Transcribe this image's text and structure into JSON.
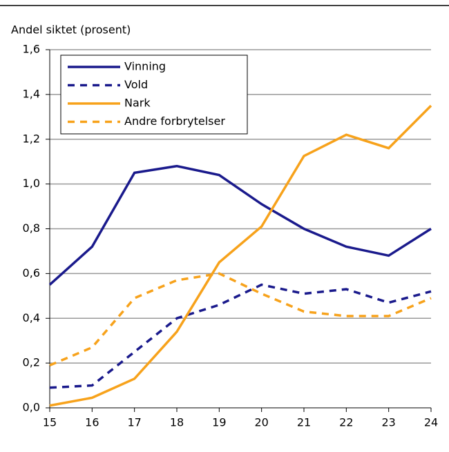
{
  "chart_data": {
    "type": "line",
    "y_label": "Andel siktet (prosent)",
    "x": [
      15,
      16,
      17,
      18,
      19,
      20,
      21,
      22,
      23,
      24
    ],
    "xlim": [
      15,
      24
    ],
    "xticks": [
      15,
      16,
      17,
      18,
      19,
      20,
      21,
      22,
      23,
      24
    ],
    "ylim": [
      0,
      1.6
    ],
    "yticks": [
      {
        "value": 0,
        "label": "0,0"
      },
      {
        "value": 0.2,
        "label": "0,2"
      },
      {
        "value": 0.4,
        "label": "0,4"
      },
      {
        "value": 0.6,
        "label": "0,6"
      },
      {
        "value": 0.8,
        "label": "0,8"
      },
      {
        "value": 1.0,
        "label": "1,0"
      },
      {
        "value": 1.2,
        "label": "1,2"
      },
      {
        "value": 1.4,
        "label": "1,4"
      },
      {
        "value": 1.6,
        "label": "1,6"
      }
    ],
    "grid": true,
    "legend": "upper left",
    "series": [
      {
        "name": "Vinning",
        "color": "#1a1a8c",
        "style": "solid",
        "values": [
          0.55,
          0.72,
          1.05,
          1.08,
          1.04,
          0.91,
          0.8,
          0.72,
          0.68,
          0.8
        ]
      },
      {
        "name": "Vold",
        "color": "#1a1a8c",
        "style": "dashed",
        "values": [
          0.09,
          0.1,
          0.25,
          0.4,
          0.46,
          0.55,
          0.51,
          0.53,
          0.47,
          0.52
        ]
      },
      {
        "name": "Nark",
        "color": "#f7a21b",
        "style": "solid",
        "values": [
          0.01,
          0.045,
          0.13,
          0.34,
          0.65,
          0.81,
          1.125,
          1.22,
          1.16,
          1.35
        ]
      },
      {
        "name": "Andre forbrytelser",
        "color": "#f7a21b",
        "style": "dashed",
        "values": [
          0.19,
          0.27,
          0.49,
          0.57,
          0.6,
          0.51,
          0.43,
          0.41,
          0.41,
          0.49
        ]
      }
    ]
  }
}
